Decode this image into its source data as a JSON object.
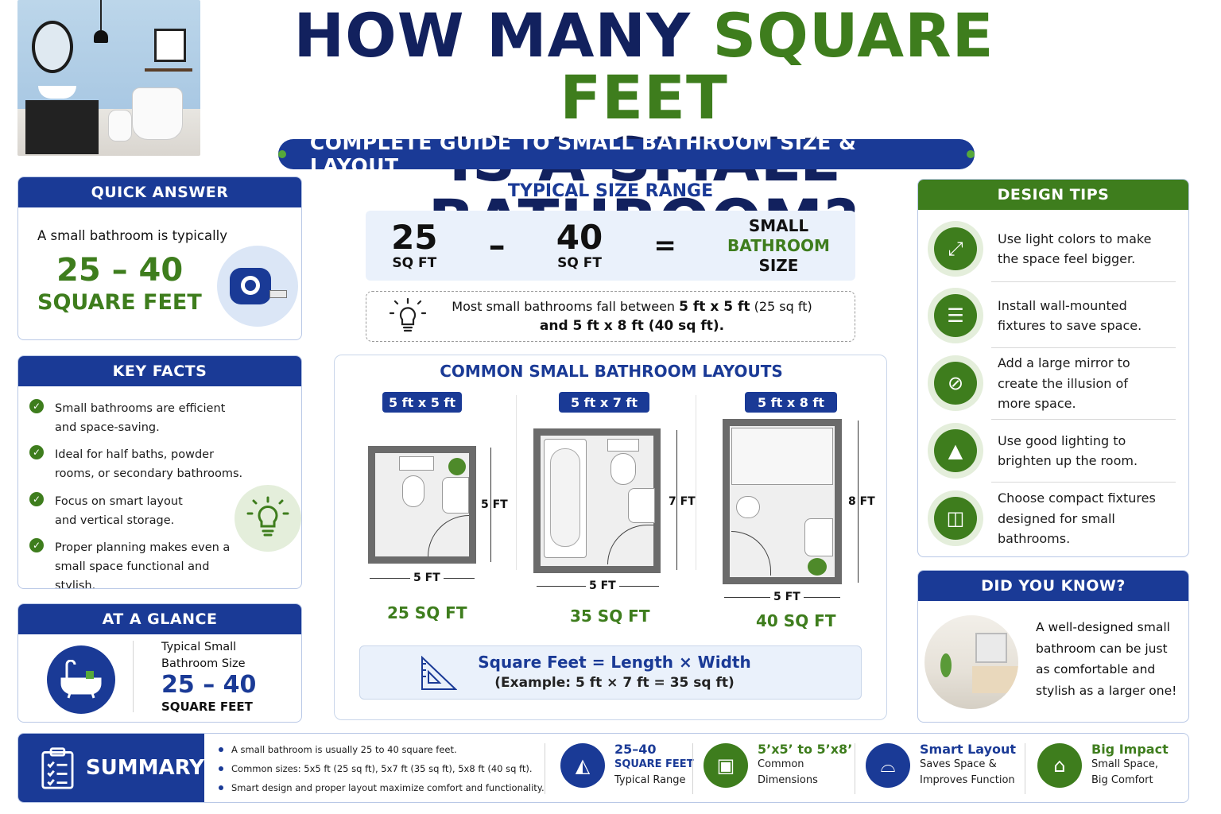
{
  "header": {
    "title_line1_a": "HOW MANY ",
    "title_line1_b": "SQUARE FEET",
    "title_line2": "IS A SMALL BATHROOM?",
    "subtitle": "COMPLETE GUIDE TO SMALL BATHROOM SIZE & LAYOUT"
  },
  "quick_answer": {
    "heading": "QUICK ANSWER",
    "intro": "A small bathroom is typically",
    "range": "25 – 40",
    "unit": "SQUARE FEET"
  },
  "key_facts": {
    "heading": "KEY FACTS",
    "items": [
      "Small bathrooms are efficient and space-saving.",
      "Ideal for half baths, powder rooms, or secondary bathrooms.",
      "Focus on smart layout and vertical storage.",
      "Proper planning makes even a small space functional and stylish."
    ]
  },
  "at_a_glance": {
    "heading": "AT A GLANCE",
    "label": "Typical Small Bathroom Size",
    "range": "25 – 40",
    "unit": "SQUARE FEET"
  },
  "size_range": {
    "heading": "TYPICAL SIZE RANGE",
    "min": "25",
    "max": "40",
    "unit": "SQ FT",
    "dash": "–",
    "equals": "=",
    "result_1": "SMALL",
    "result_2": "BATHROOM",
    "result_3": "SIZE",
    "note_1a": "Most small bathrooms fall between ",
    "note_1b": "5 ft x 5 ft",
    "note_1c": " (25 sq ft)",
    "note_2": "and 5 ft x 8 ft (40 sq ft)."
  },
  "layouts": {
    "heading": "COMMON SMALL BATHROOM LAYOUTS",
    "items": [
      {
        "tag": "5 ft x 5 ft",
        "height": "5 FT",
        "width": "5 FT",
        "area": "25 SQ FT"
      },
      {
        "tag": "5 ft x 7 ft",
        "height": "7 FT",
        "width": "5 FT",
        "area": "35 SQ FT"
      },
      {
        "tag": "5 ft x 8 ft",
        "height": "8 FT",
        "width": "5 FT",
        "area": "40 SQ FT"
      }
    ],
    "formula": "Square Feet = Length × Width",
    "example": "(Example: 5 ft × 7 ft = 35 sq ft)"
  },
  "design_tips": {
    "heading": "DESIGN TIPS",
    "items": [
      {
        "text": "Use light colors to make the space feel bigger.",
        "icon": "expand-icon"
      },
      {
        "text": "Install wall-mounted fixtures to save space.",
        "icon": "shelf-icon"
      },
      {
        "text": "Add a large mirror to create the illusion of more space.",
        "icon": "mirror-icon"
      },
      {
        "text": "Use good lighting to brighten up the room.",
        "icon": "lamp-icon"
      },
      {
        "text": "Choose compact fixtures designed for small bathrooms.",
        "icon": "cabinet-icon"
      }
    ]
  },
  "did_you_know": {
    "heading": "DID YOU KNOW?",
    "text": "A well-designed small bathroom can be just as comfortable and stylish as a larger one!"
  },
  "summary": {
    "heading": "SUMMARY",
    "bullets": [
      "A small bathroom is usually 25 to 40 square feet.",
      "Common sizes: 5x5 ft (25 sq ft), 5x7 ft (35 sq ft), 5x8 ft (40 sq ft).",
      "Smart design and proper layout maximize comfort and functionality."
    ],
    "stats": [
      {
        "title": "25–40",
        "line1": "SQUARE FEET",
        "line2": "Typical Range"
      },
      {
        "title": "5’x5’ to 5’x8’",
        "line1": "Common",
        "line2": "Dimensions"
      },
      {
        "title": "Smart Layout",
        "line1": "Saves Space &",
        "line2": "Improves Function"
      },
      {
        "title": "Big Impact",
        "line1": "Small Space,",
        "line2": "Big Comfort"
      }
    ]
  },
  "colors": {
    "navy": "#12215e",
    "blue": "#1a3a96",
    "green": "#3e7d1d"
  }
}
